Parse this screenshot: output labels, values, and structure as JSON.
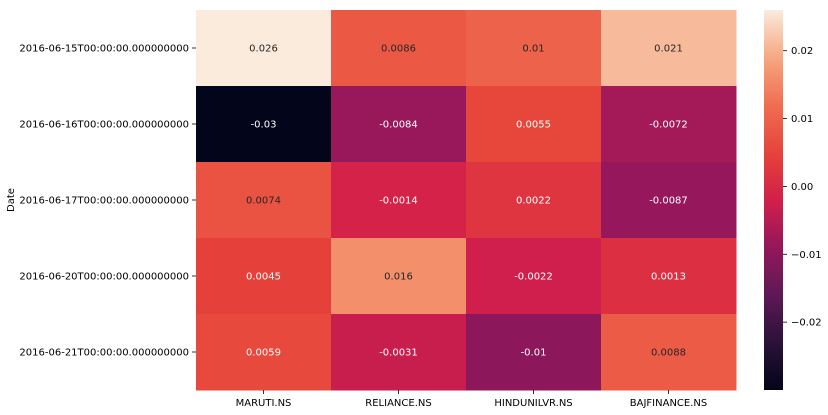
{
  "chart_data": {
    "type": "heatmap",
    "title": "",
    "xlabel": "",
    "ylabel": "Date",
    "columns": [
      "MARUTI.NS",
      "RELIANCE.NS",
      "HINDUNILVR.NS",
      "BAJFINANCE.NS"
    ],
    "rows": [
      "2016-06-15T00:00:00.000000000",
      "2016-06-16T00:00:00.000000000",
      "2016-06-17T00:00:00.000000000",
      "2016-06-20T00:00:00.000000000",
      "2016-06-21T00:00:00.000000000"
    ],
    "values": [
      [
        0.026,
        0.0086,
        0.01,
        0.021
      ],
      [
        -0.03,
        -0.0084,
        0.0055,
        -0.0072
      ],
      [
        0.0074,
        -0.0014,
        0.0022,
        -0.0087
      ],
      [
        0.0045,
        0.016,
        -0.0022,
        0.0013
      ],
      [
        0.0059,
        -0.0031,
        -0.01,
        0.0088
      ]
    ],
    "cell_labels": [
      [
        "0.026",
        "0.0086",
        "0.01",
        "0.021"
      ],
      [
        "-0.03",
        "-0.0084",
        "0.0055",
        "-0.0072"
      ],
      [
        "0.0074",
        "-0.0014",
        "0.0022",
        "-0.0087"
      ],
      [
        "0.0045",
        "0.016",
        "-0.0022",
        "0.0013"
      ],
      [
        "0.0059",
        "-0.0031",
        "-0.01",
        "0.0088"
      ]
    ],
    "colorbar": {
      "range": [
        -0.03,
        0.026
      ],
      "ticks": [
        0.02,
        0.01,
        0.0,
        -0.01,
        -0.02
      ],
      "tick_labels": [
        "0.02",
        "0.01",
        "0.00",
        "−0.01",
        "−0.02"
      ],
      "colormap": "rocket"
    }
  }
}
